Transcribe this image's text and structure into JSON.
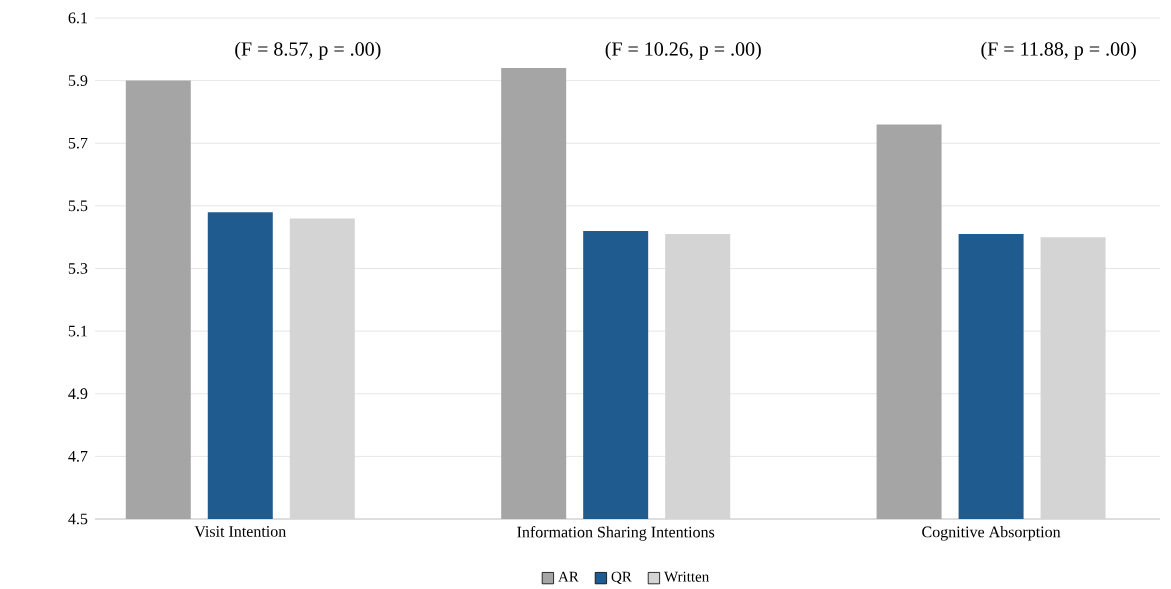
{
  "chart_data": {
    "type": "bar",
    "categories": [
      "Visit Intention",
      "Information Sharing Intentions",
      "Cognitive Absorption"
    ],
    "series": [
      {
        "name": "AR",
        "color": "#a5a5a5",
        "values": [
          5.9,
          5.94,
          5.76
        ]
      },
      {
        "name": "QR",
        "color": "#1f5b8e",
        "values": [
          5.48,
          5.42,
          5.41
        ]
      },
      {
        "name": "Written",
        "color": "#d4d4d4",
        "values": [
          5.46,
          5.41,
          5.4
        ]
      }
    ],
    "annotations": [
      "(F = 8.57, p = .00)",
      "(F = 10.26, p = .00)",
      "(F = 11.88, p = .00)"
    ],
    "ylim": [
      4.5,
      6.1
    ],
    "yticks": [
      4.5,
      4.7,
      4.9,
      5.1,
      5.3,
      5.5,
      5.7,
      5.9,
      6.1
    ],
    "grid": "y",
    "legend": "bottom"
  }
}
